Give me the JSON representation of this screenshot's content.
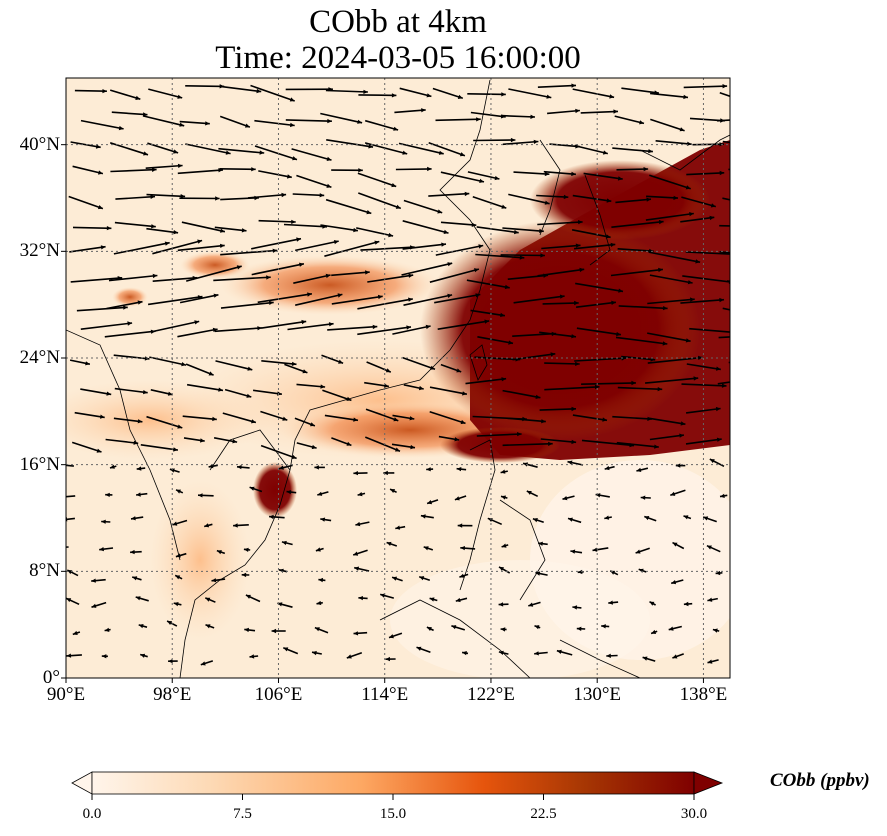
{
  "title_line1": "CObb at 4km",
  "title_line2": "Time: 2024-03-05 16:00:00",
  "map": {
    "extent": {
      "lon_min": 90,
      "lon_max": 140,
      "lat_min": 0,
      "lat_max": 45
    },
    "lat_ticks": [
      {
        "value": 0,
        "label": "0°"
      },
      {
        "value": 8,
        "label": "8°N"
      },
      {
        "value": 16,
        "label": "16°N"
      },
      {
        "value": 24,
        "label": "24°N"
      },
      {
        "value": 32,
        "label": "32°N"
      },
      {
        "value": 40,
        "label": "40°N"
      }
    ],
    "lon_ticks": [
      {
        "value": 90,
        "label": "90°E"
      },
      {
        "value": 98,
        "label": "98°E"
      },
      {
        "value": 106,
        "label": "106°E"
      },
      {
        "value": 114,
        "label": "114°E"
      },
      {
        "value": 122,
        "label": "122°E"
      },
      {
        "value": 130,
        "label": "130°E"
      },
      {
        "value": 138,
        "label": "138°E"
      }
    ],
    "gridlines": true,
    "layers": [
      "COastlines",
      "wind-vectors",
      "CObb-concentration-field"
    ]
  },
  "colorbar": {
    "label": "CObb (ppbv)",
    "min": 0,
    "max": 30,
    "extend": "both",
    "ticks": [
      {
        "value": 0,
        "label": "0.0"
      },
      {
        "value": 7.5,
        "label": "7.5"
      },
      {
        "value": 15,
        "label": "15.0"
      },
      {
        "value": 22.5,
        "label": "22.5"
      },
      {
        "value": 30,
        "label": "30.0"
      }
    ],
    "colormap_stops": [
      "#fff5eb",
      "#fdd9b4",
      "#fda762",
      "#e6550d",
      "#a63603",
      "#7f0000"
    ]
  }
}
